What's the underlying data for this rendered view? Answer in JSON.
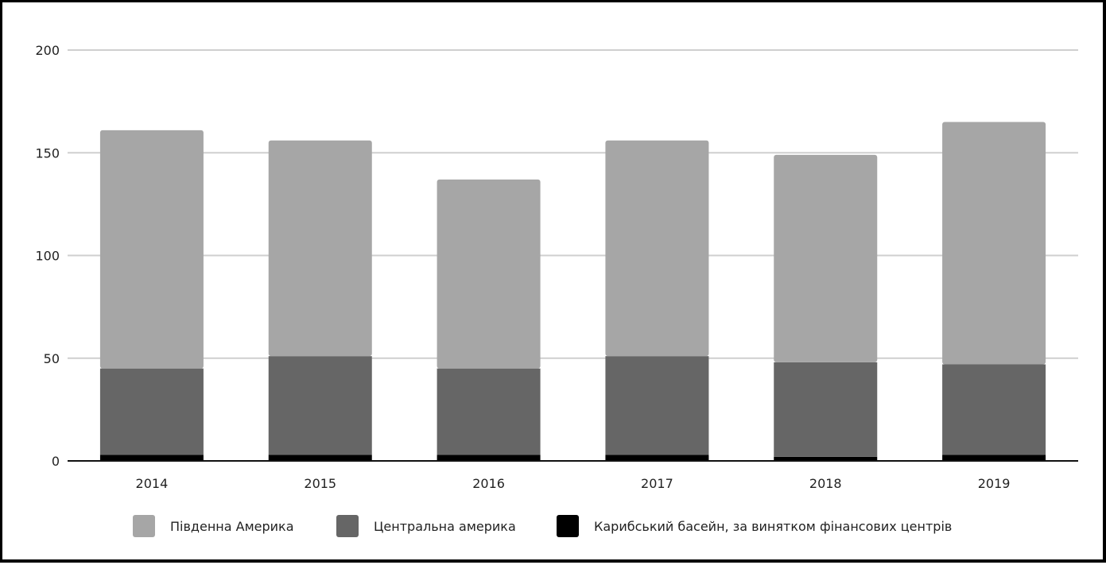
{
  "chart_data": {
    "type": "bar",
    "stacked": true,
    "categories": [
      "2014",
      "2015",
      "2016",
      "2017",
      "2018",
      "2019"
    ],
    "series": [
      {
        "name": "Карибський басейн, за винятком фінансових центрів",
        "color": "#000000",
        "values": [
          3,
          3,
          3,
          3,
          2,
          3
        ]
      },
      {
        "name": "Центральна америка",
        "color": "#666666",
        "values": [
          42,
          48,
          42,
          48,
          46,
          44
        ]
      },
      {
        "name": "Південна Америка",
        "color": "#a6a6a6",
        "values": [
          116,
          105,
          92,
          105,
          101,
          118
        ]
      }
    ],
    "legend_order": [
      2,
      1,
      0
    ],
    "ylim": [
      0,
      200
    ],
    "yticks": [
      "0",
      "50",
      "100",
      "150",
      "200"
    ],
    "grid": true,
    "legend_position": "bottom",
    "title": "",
    "xlabel": "",
    "ylabel": ""
  }
}
